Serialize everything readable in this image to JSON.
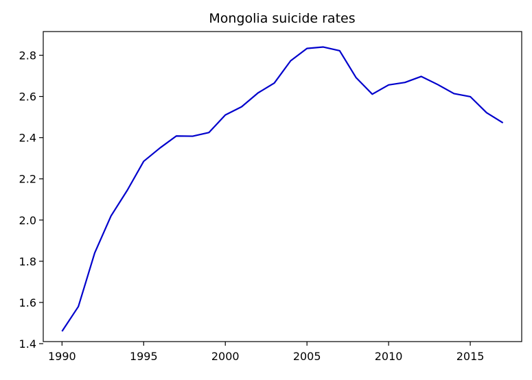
{
  "chart_data": {
    "type": "line",
    "title": "Mongolia suicide rates",
    "xlabel": "",
    "ylabel": "",
    "xlim": [
      1988.85,
      2018.15
    ],
    "ylim": [
      1.41,
      2.915
    ],
    "xticks": [
      1990,
      1995,
      2000,
      2005,
      2010,
      2015
    ],
    "yticks": [
      1.4,
      1.6,
      1.8,
      2.0,
      2.2,
      2.4,
      2.6,
      2.8
    ],
    "ytick_labels": [
      "1.4",
      "1.6",
      "1.8",
      "2.0",
      "2.2",
      "2.4",
      "2.6",
      "2.8"
    ],
    "grid": false,
    "legend": "none",
    "series": [
      {
        "color": "#0000cc",
        "x": [
          1990,
          1991,
          1992,
          1993,
          1994,
          1995,
          1996,
          1997,
          1998,
          1999,
          2000,
          2001,
          2002,
          2003,
          2004,
          2005,
          2006,
          2007,
          2008,
          2009,
          2010,
          2011,
          2012,
          2013,
          2014,
          2015,
          2016,
          2017
        ],
        "y": [
          1.46,
          1.58,
          1.84,
          2.02,
          2.145,
          2.285,
          2.35,
          2.408,
          2.407,
          2.425,
          2.51,
          2.55,
          2.617,
          2.665,
          2.773,
          2.833,
          2.84,
          2.822,
          2.692,
          2.611,
          2.656,
          2.668,
          2.697,
          2.658,
          2.614,
          2.599,
          2.521,
          2.472
        ]
      }
    ]
  }
}
